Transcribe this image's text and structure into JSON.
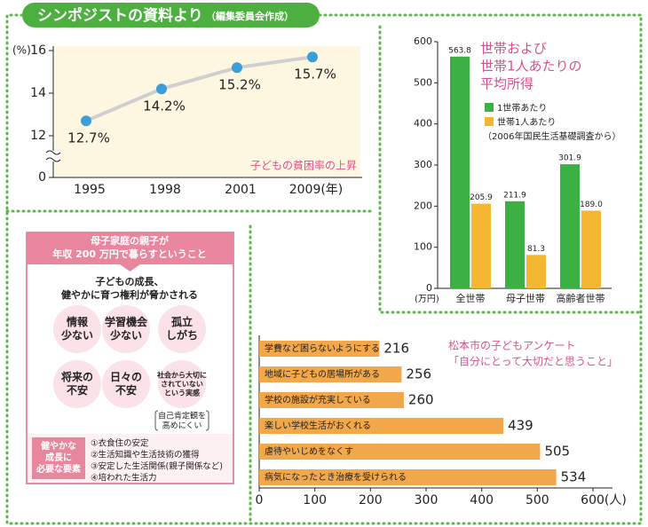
{
  "header": {
    "title": "シンポジストの資料より",
    "credit": "（編集委員会作成）"
  },
  "chart_data": [
    {
      "type": "line",
      "categories": [
        "1995",
        "1998",
        "2001",
        "2009(年)"
      ],
      "values": [
        12.7,
        14.2,
        15.2,
        15.7
      ],
      "value_labels": [
        "12.7%",
        "14.2%",
        "15.2%",
        "15.7%"
      ],
      "ylim": [
        0,
        16
      ],
      "yticks": [
        0,
        12,
        14,
        16
      ],
      "y_unit": "(%)",
      "axis_break": true,
      "color": "#cfcfcf",
      "marker_color": "#3a9fd8",
      "annotation": "子どもの貧困率の上昇"
    },
    {
      "type": "bar",
      "title": [
        "世帯および",
        "世帯1人あたりの",
        "平均所得"
      ],
      "categories": [
        "全世帯",
        "母子世帯",
        "高齢者世帯"
      ],
      "series": [
        {
          "name": "1世帯あたり",
          "color": "#3cb043",
          "values": [
            563.8,
            211.9,
            301.9
          ]
        },
        {
          "name": "世帯1人あたり",
          "color": "#f5b731",
          "values": [
            205.9,
            81.3,
            189
          ],
          "value_labels": [
            "205.9",
            "81.3",
            "189.0"
          ]
        }
      ],
      "ylim": [
        0,
        600
      ],
      "yticks": [
        0,
        100,
        200,
        300,
        400,
        500,
        600
      ],
      "y_unit": "(万円)",
      "note": "（2006年国民生活基礎調査から）"
    },
    {
      "type": "hbar",
      "title": [
        "松本市の子どもアンケート",
        "「自分にとって大切だと思うこと」"
      ],
      "categories": [
        "学費など困らないようにする",
        "地域に子どもの居場所がある",
        "学校の施設が充実している",
        "楽しい学校生活がおくれる",
        "虐待やいじめをなくす",
        "病気になったとき治療を受けられる"
      ],
      "values": [
        216,
        256,
        260,
        439,
        505,
        534
      ],
      "color": "#f2a74b",
      "xlim": [
        0,
        600
      ],
      "xticks": [
        0,
        100,
        200,
        300,
        400,
        500,
        {
          "value": 600,
          "label": "600(人)"
        }
      ]
    }
  ],
  "diagram": {
    "header": [
      "母子家庭の親子が",
      "年収 200 万円で暮らすということ"
    ],
    "subheading": [
      "子どもの成長、",
      "健やかに育つ権利が脅かされる"
    ],
    "circles": [
      [
        "情報",
        "少ない"
      ],
      [
        "学習機会",
        "少ない"
      ],
      [
        "孤立",
        "しがち"
      ],
      [
        "将来の",
        "不安"
      ],
      [
        "日々の",
        "不安"
      ],
      [
        "社会から大切に",
        "されていない",
        "という実感"
      ]
    ],
    "bracket": [
      "自己肯定観を",
      "高めにくい"
    ],
    "needs_label": [
      "健やかな",
      "成長に",
      "必要な要素"
    ],
    "needs": [
      "①衣食住の安定",
      "②生活知識や生活技術の獲得",
      "③安定した生活関係(親子関係など)",
      "④培われた生活力"
    ]
  }
}
